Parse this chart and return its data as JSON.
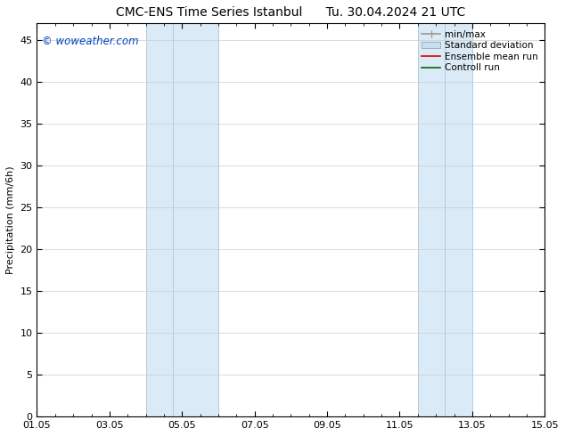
{
  "title_left": "CMC-ENS Time Series Istanbul",
  "title_right": "Tu. 30.04.2024 21 UTC",
  "ylabel": "Precipitation (mm/6h)",
  "xlabel": "",
  "xlim": [
    1.05,
    15.05
  ],
  "ylim": [
    0,
    47
  ],
  "yticks": [
    0,
    5,
    10,
    15,
    20,
    25,
    30,
    35,
    40,
    45
  ],
  "xtick_labels": [
    "01.05",
    "03.05",
    "05.05",
    "07.05",
    "09.05",
    "11.05",
    "13.05",
    "15.05"
  ],
  "xtick_positions": [
    1.05,
    3.05,
    5.05,
    7.05,
    9.05,
    11.05,
    13.05,
    15.05
  ],
  "shaded_regions": [
    {
      "xmin": 4.05,
      "xmax": 4.8,
      "color": "#d8eaf5"
    },
    {
      "xmin": 4.8,
      "xmax": 6.05,
      "color": "#d8eaf5"
    },
    {
      "xmin": 11.55,
      "xmax": 12.3,
      "color": "#d8eaf5"
    },
    {
      "xmin": 12.3,
      "xmax": 13.05,
      "color": "#d8eaf5"
    }
  ],
  "divider_lines": [
    4.8,
    12.3
  ],
  "band_borders": [
    4.05,
    6.05,
    11.55,
    13.05
  ],
  "watermark": "© woweather.com",
  "watermark_color": "#0044bb",
  "background_color": "#ffffff",
  "shade_color": "#daeaf6",
  "shade_border_color": "#b0cce0",
  "title_fontsize": 10,
  "axis_label_fontsize": 8,
  "tick_fontsize": 8,
  "legend_fontsize": 7.5
}
